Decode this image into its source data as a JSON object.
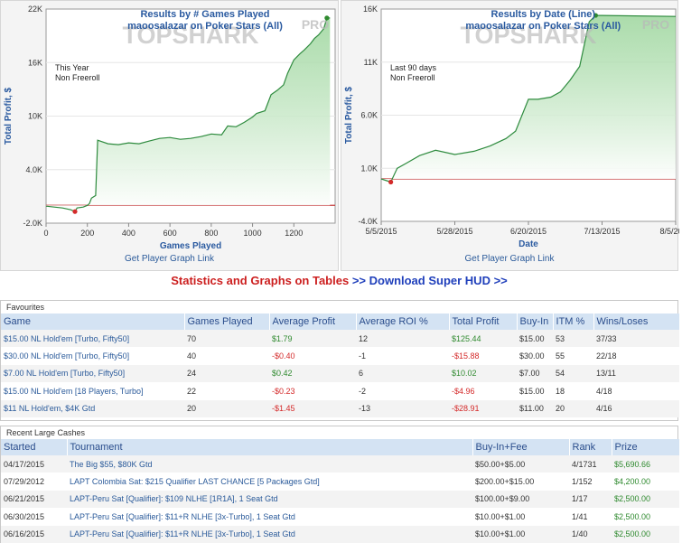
{
  "charts": {
    "left": {
      "title": "Results by # Games Played",
      "subtitle": "maoosalazar on Poker Stars (All)",
      "watermark": "TOPSHARK",
      "watermark_pro": "PRO",
      "note_1": "This Year",
      "note_2": "Non Freeroll",
      "ylabel": "Total Profit, $",
      "xlabel": "Games Played",
      "y_ticks": [
        "22K",
        "16K",
        "10K",
        "4.0K",
        "-2.0K"
      ],
      "x_ticks": [
        "0",
        "200",
        "400",
        "600",
        "800",
        "1000",
        "1200"
      ],
      "link": "Get Player Graph Link"
    },
    "right": {
      "title": "Results by Date (Line)",
      "subtitle": "maoosalazar on Poker Stars (All)",
      "watermark": "TOPSHARK",
      "watermark_pro": "PRO",
      "note_1": "Last 90 days",
      "note_2": "Non Freeroll",
      "ylabel": "Total Profit, $",
      "xlabel": "Date",
      "y_ticks": [
        "16K",
        "11K",
        "6.0K",
        "1.0K",
        "-4.0K"
      ],
      "x_ticks": [
        "5/5/2015",
        "5/28/2015",
        "6/20/2015",
        "7/13/2015",
        "8/5/2015"
      ],
      "link": "Get Player Graph Link"
    }
  },
  "chart_data": [
    {
      "type": "area",
      "title": "Results by # Games Played",
      "xlabel": "Games Played",
      "ylabel": "Total Profit, $",
      "xlim": [
        0,
        1400
      ],
      "ylim": [
        -2000,
        22000
      ],
      "points": [
        [
          0,
          -100
        ],
        [
          40,
          -200
        ],
        [
          80,
          -300
        ],
        [
          120,
          -500
        ],
        [
          140,
          -700
        ],
        [
          150,
          -300
        ],
        [
          180,
          -200
        ],
        [
          200,
          0
        ],
        [
          210,
          200
        ],
        [
          220,
          800
        ],
        [
          240,
          1100
        ],
        [
          250,
          7300
        ],
        [
          300,
          6900
        ],
        [
          350,
          6800
        ],
        [
          400,
          7000
        ],
        [
          450,
          6900
        ],
        [
          500,
          7200
        ],
        [
          550,
          7500
        ],
        [
          600,
          7600
        ],
        [
          650,
          7400
        ],
        [
          700,
          7500
        ],
        [
          750,
          7700
        ],
        [
          800,
          8000
        ],
        [
          850,
          7900
        ],
        [
          880,
          8900
        ],
        [
          920,
          8800
        ],
        [
          960,
          9300
        ],
        [
          1000,
          9900
        ],
        [
          1020,
          10300
        ],
        [
          1060,
          10600
        ],
        [
          1090,
          12400
        ],
        [
          1120,
          12900
        ],
        [
          1150,
          13500
        ],
        [
          1170,
          14800
        ],
        [
          1200,
          16300
        ],
        [
          1230,
          17000
        ],
        [
          1250,
          17400
        ],
        [
          1280,
          18100
        ],
        [
          1300,
          18700
        ],
        [
          1320,
          19100
        ],
        [
          1345,
          19800
        ],
        [
          1360,
          21000
        ],
        [
          1375,
          21000
        ]
      ],
      "marker_min": [
        140,
        -700
      ],
      "marker_max": [
        1360,
        21000
      ],
      "color": "#2e8b3e"
    },
    {
      "type": "area",
      "title": "Results by Date (Line)",
      "xlabel": "Date",
      "ylabel": "Total Profit, $",
      "ylim": [
        -4000,
        16000
      ],
      "x": [
        "5/5/2015",
        "5/8/2015",
        "5/10/2015",
        "5/13/2015",
        "5/17/2015",
        "5/22/2015",
        "5/28/2015",
        "6/3/2015",
        "6/8/2015",
        "6/13/2015",
        "6/16/2015",
        "6/20/2015",
        "6/23/2015",
        "6/27/2015",
        "6/30/2015",
        "7/3/2015",
        "7/6/2015",
        "7/9/2015",
        "7/11/2015",
        "7/13/2015",
        "8/5/2015"
      ],
      "y": [
        0,
        -300,
        1000,
        1500,
        2200,
        2700,
        2300,
        2600,
        3100,
        3800,
        4500,
        7500,
        7500,
        7700,
        8200,
        9300,
        10600,
        14800,
        15400,
        15400,
        15300
      ],
      "marker_min": [
        "5/8/2015",
        -300
      ],
      "marker_max": [
        "7/11/2015",
        15400
      ],
      "color": "#2e8b3e"
    }
  ],
  "promo": {
    "part1": "Statistics and Graphs on Tables",
    "part2": ">> Download Super HUD >>"
  },
  "favourites": {
    "title": "Favourites",
    "headers": [
      "Game",
      "Games Played",
      "Average Profit",
      "Average ROI %",
      "Total Profit",
      "Buy-In",
      "ITM %",
      "Wins/Loses"
    ],
    "rows": [
      [
        "$15.00 NL Hold'em [Turbo, Fifty50]",
        "70",
        "$1.79",
        "12",
        "$125.44",
        "$15.00",
        "53",
        "37/33"
      ],
      [
        "$30.00 NL Hold'em [Turbo, Fifty50]",
        "40",
        "-$0.40",
        "-1",
        "-$15.88",
        "$30.00",
        "55",
        "22/18"
      ],
      [
        "$7.00 NL Hold'em [Turbo, Fifty50]",
        "24",
        "$0.42",
        "6",
        "$10.02",
        "$7.00",
        "54",
        "13/11"
      ],
      [
        "$15.00 NL Hold'em [18 Players, Turbo]",
        "22",
        "-$0.23",
        "-2",
        "-$4.96",
        "$15.00",
        "18",
        "4/18"
      ],
      [
        "$11 NL Hold'em, $4K Gtd",
        "20",
        "-$1.45",
        "-13",
        "-$28.91",
        "$11.00",
        "20",
        "4/16"
      ]
    ]
  },
  "cashes": {
    "title": "Recent Large Cashes",
    "headers": [
      "Started",
      "Tournament",
      "Buy-In+Fee",
      "Rank",
      "Prize"
    ],
    "rows": [
      [
        "04/17/2015",
        "The Big $55, $80K Gtd",
        "$50.00+$5.00",
        "4/1731",
        "$5,690.66"
      ],
      [
        "07/29/2012",
        "LAPT Colombia Sat: $215 Qualifier LAST CHANCE [5 Packages Gtd]",
        "$200.00+$15.00",
        "1/152",
        "$4,200.00"
      ],
      [
        "06/21/2015",
        "LAPT-Peru Sat [Qualifier]: $109 NLHE [1R1A], 1 Seat Gtd",
        "$100.00+$9.00",
        "1/17",
        "$2,500.00"
      ],
      [
        "06/30/2015",
        "LAPT-Peru Sat [Qualifier]: $11+R NLHE [3x-Turbo], 1 Seat Gtd",
        "$10.00+$1.00",
        "1/41",
        "$2,500.00"
      ],
      [
        "06/16/2015",
        "LAPT-Peru Sat [Qualifier]: $11+R NLHE [3x-Turbo], 1 Seat Gtd",
        "$10.00+$1.00",
        "1/40",
        "$2,500.00"
      ]
    ]
  }
}
